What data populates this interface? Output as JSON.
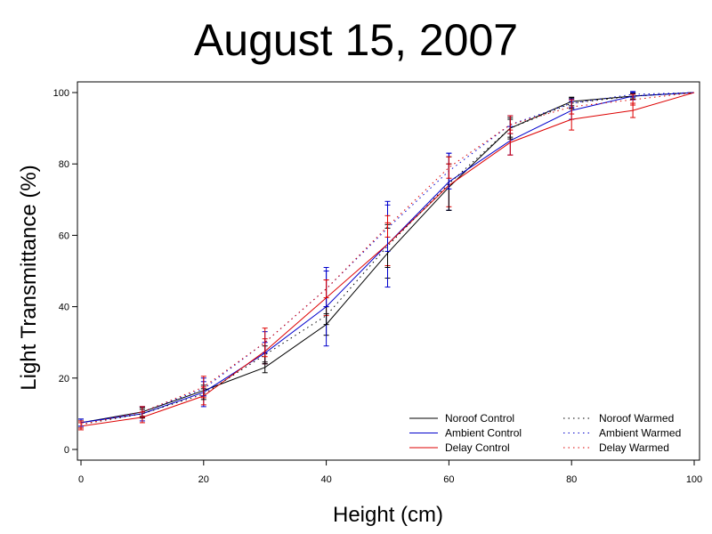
{
  "chart_data": {
    "type": "line",
    "title": "August 15, 2007",
    "xlabel": "Height (cm)",
    "ylabel": "Light Transmittance (%)",
    "xlim": [
      0,
      100
    ],
    "ylim": [
      0,
      100
    ],
    "xticks": [
      0,
      20,
      40,
      60,
      80,
      100
    ],
    "yticks": [
      0,
      20,
      40,
      60,
      80,
      100
    ],
    "grid": false,
    "legend_position": "bottom-right",
    "x": [
      0,
      10,
      20,
      30,
      40,
      50,
      60,
      70,
      80,
      90,
      100
    ],
    "series": [
      {
        "name": "Noroof Control",
        "color": "#000000",
        "style": "solid",
        "values": [
          7.5,
          10.5,
          16.5,
          23,
          35,
          55,
          73.5,
          90,
          97.5,
          99,
          100
        ],
        "errors": [
          1.0,
          1.2,
          1.5,
          1.5,
          3.0,
          7.0,
          6.5,
          2.5,
          1.2,
          0.8,
          0
        ]
      },
      {
        "name": "Ambient Control",
        "color": "#0000cc",
        "style": "solid",
        "values": [
          7.5,
          10,
          16,
          27,
          40,
          57.5,
          75,
          86.5,
          95,
          99,
          100
        ],
        "errors": [
          1.0,
          2.0,
          4.0,
          3.0,
          11.0,
          12.0,
          8.0,
          4.0,
          2.5,
          1.0,
          0
        ]
      },
      {
        "name": "Delay Control",
        "color": "#dd0000",
        "style": "solid",
        "values": [
          6.5,
          9,
          15,
          27.5,
          42.5,
          57.5,
          74,
          86,
          92.5,
          95,
          100
        ],
        "errors": [
          1.0,
          1.5,
          2.5,
          3.5,
          5.0,
          6.0,
          6.0,
          3.5,
          3.0,
          2.0,
          0
        ]
      },
      {
        "name": "Noroof Warmed",
        "color": "#000000",
        "style": "dotted",
        "values": [
          7,
          10,
          15.5,
          26.5,
          37.5,
          57,
          74.5,
          90,
          97,
          99,
          100
        ],
        "errors": [
          1.0,
          1.2,
          1.5,
          2.5,
          2.5,
          6.0,
          7.5,
          3.0,
          1.5,
          0.8,
          0
        ]
      },
      {
        "name": "Ambient Warmed",
        "color": "#0000cc",
        "style": "dotted",
        "values": [
          7.5,
          10.5,
          17,
          30,
          45,
          62,
          78,
          91,
          97,
          99.5,
          100
        ],
        "errors": [
          1.0,
          1.5,
          2.0,
          3.0,
          5.0,
          6.5,
          5.0,
          2.5,
          1.2,
          0.8,
          0
        ]
      },
      {
        "name": "Delay Warmed",
        "color": "#dd0000",
        "style": "dotted",
        "values": [
          7,
          10.5,
          17.5,
          30,
          45,
          62.5,
          79,
          91,
          96,
          98,
          100
        ],
        "errors": [
          1.0,
          1.5,
          3.0,
          4.0,
          2.5,
          3.0,
          3.0,
          2.5,
          2.0,
          1.5,
          0
        ]
      }
    ]
  }
}
